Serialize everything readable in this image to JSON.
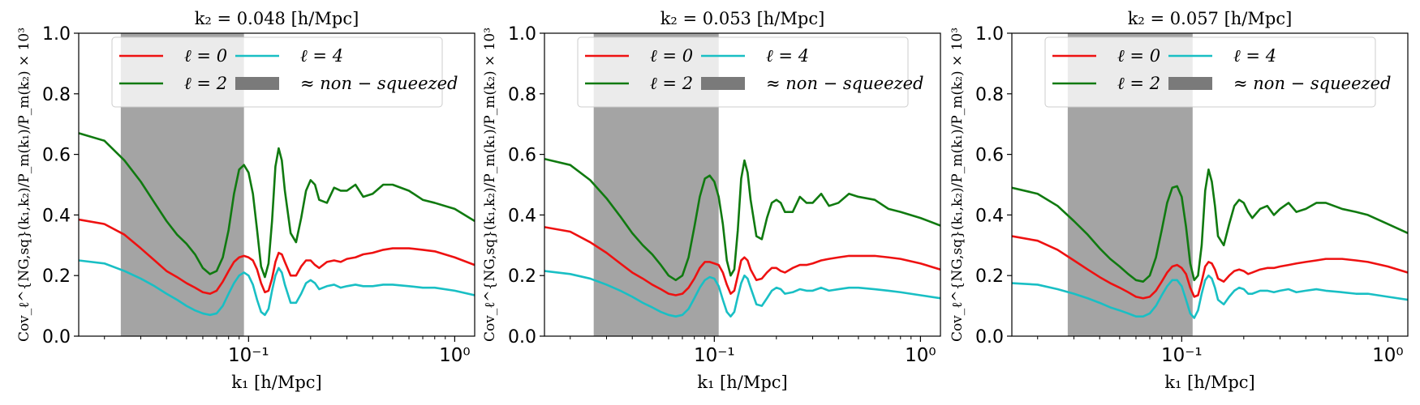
{
  "chart_data": [
    {
      "type": "line",
      "title": "k₂ = 0.048 [h/Mpc]",
      "xlabel": "k₁ [h/Mpc]",
      "ylabel": "Cov_ℓ^{NG,sq}(k₁,k₂)/P_m(k₁)/P_m(k₂) × 10³",
      "xscale": "log",
      "xlim": [
        0.015,
        1.25
      ],
      "ylim": [
        0,
        1.0
      ],
      "xticks": [
        0.1,
        1.0
      ],
      "xtick_labels": [
        "10⁻¹",
        "10⁰"
      ],
      "yticks": [
        0,
        0.2,
        0.4,
        0.6,
        0.8,
        1.0
      ],
      "ytick_labels": [
        "0.0",
        "0.2",
        "0.4",
        "0.6",
        "0.8",
        "1.0"
      ],
      "shaded_band": {
        "x0": 0.024,
        "x1": 0.095,
        "label": "≈ non − squeezed",
        "color": "#9a9a9a"
      },
      "legend_position": "top",
      "series": [
        {
          "name": "ℓ = 0",
          "color": "#ee1111",
          "x": [
            0.015,
            0.02,
            0.025,
            0.03,
            0.035,
            0.04,
            0.045,
            0.05,
            0.055,
            0.06,
            0.065,
            0.07,
            0.075,
            0.08,
            0.085,
            0.09,
            0.095,
            0.1,
            0.105,
            0.11,
            0.115,
            0.12,
            0.125,
            0.13,
            0.135,
            0.14,
            0.145,
            0.15,
            0.16,
            0.17,
            0.18,
            0.19,
            0.2,
            0.21,
            0.22,
            0.24,
            0.26,
            0.28,
            0.3,
            0.33,
            0.36,
            0.4,
            0.45,
            0.5,
            0.6,
            0.7,
            0.8,
            1.0,
            1.25
          ],
          "y": [
            0.385,
            0.37,
            0.335,
            0.29,
            0.25,
            0.215,
            0.195,
            0.175,
            0.16,
            0.145,
            0.14,
            0.15,
            0.18,
            0.215,
            0.245,
            0.26,
            0.265,
            0.26,
            0.25,
            0.22,
            0.175,
            0.145,
            0.15,
            0.19,
            0.245,
            0.275,
            0.27,
            0.245,
            0.2,
            0.2,
            0.23,
            0.25,
            0.25,
            0.235,
            0.225,
            0.245,
            0.25,
            0.245,
            0.255,
            0.26,
            0.27,
            0.275,
            0.285,
            0.29,
            0.29,
            0.285,
            0.28,
            0.26,
            0.235
          ]
        },
        {
          "name": "ℓ = 2",
          "color": "#107a10",
          "x": [
            0.015,
            0.02,
            0.025,
            0.03,
            0.035,
            0.04,
            0.045,
            0.05,
            0.055,
            0.06,
            0.065,
            0.07,
            0.075,
            0.08,
            0.085,
            0.09,
            0.095,
            0.1,
            0.105,
            0.11,
            0.115,
            0.12,
            0.125,
            0.13,
            0.135,
            0.14,
            0.145,
            0.15,
            0.16,
            0.17,
            0.18,
            0.19,
            0.2,
            0.21,
            0.22,
            0.24,
            0.26,
            0.28,
            0.3,
            0.33,
            0.36,
            0.4,
            0.45,
            0.5,
            0.6,
            0.7,
            0.8,
            1.0,
            1.25
          ],
          "y": [
            0.67,
            0.645,
            0.58,
            0.51,
            0.44,
            0.38,
            0.335,
            0.305,
            0.27,
            0.225,
            0.205,
            0.215,
            0.26,
            0.35,
            0.47,
            0.55,
            0.565,
            0.54,
            0.47,
            0.35,
            0.23,
            0.195,
            0.24,
            0.38,
            0.56,
            0.62,
            0.58,
            0.48,
            0.34,
            0.31,
            0.39,
            0.48,
            0.515,
            0.5,
            0.45,
            0.44,
            0.49,
            0.48,
            0.48,
            0.5,
            0.46,
            0.47,
            0.5,
            0.5,
            0.48,
            0.45,
            0.44,
            0.42,
            0.38
          ]
        },
        {
          "name": "ℓ = 4",
          "color": "#19bfc4",
          "x": [
            0.015,
            0.02,
            0.025,
            0.03,
            0.035,
            0.04,
            0.045,
            0.05,
            0.055,
            0.06,
            0.065,
            0.07,
            0.075,
            0.08,
            0.085,
            0.09,
            0.095,
            0.1,
            0.105,
            0.11,
            0.115,
            0.12,
            0.125,
            0.13,
            0.135,
            0.14,
            0.145,
            0.15,
            0.16,
            0.17,
            0.18,
            0.19,
            0.2,
            0.21,
            0.22,
            0.24,
            0.26,
            0.28,
            0.3,
            0.33,
            0.36,
            0.4,
            0.45,
            0.5,
            0.6,
            0.7,
            0.8,
            1.0,
            1.25
          ],
          "y": [
            0.25,
            0.24,
            0.215,
            0.19,
            0.165,
            0.14,
            0.12,
            0.1,
            0.085,
            0.075,
            0.07,
            0.075,
            0.1,
            0.14,
            0.175,
            0.2,
            0.21,
            0.2,
            0.17,
            0.12,
            0.08,
            0.07,
            0.09,
            0.15,
            0.2,
            0.225,
            0.21,
            0.17,
            0.11,
            0.11,
            0.14,
            0.175,
            0.185,
            0.175,
            0.155,
            0.165,
            0.17,
            0.16,
            0.165,
            0.17,
            0.165,
            0.165,
            0.17,
            0.17,
            0.165,
            0.16,
            0.16,
            0.15,
            0.135
          ]
        }
      ]
    },
    {
      "type": "line",
      "title": "k₂ = 0.053 [h/Mpc]",
      "xlabel": "k₁ [h/Mpc]",
      "ylabel": "Cov_ℓ^{NG,sq}(k₁,k₂)/P_m(k₁)/P_m(k₂) × 10³",
      "xscale": "log",
      "xlim": [
        0.015,
        1.25
      ],
      "ylim": [
        0,
        1.0
      ],
      "xticks": [
        0.1,
        1.0
      ],
      "xtick_labels": [
        "10⁻¹",
        "10⁰"
      ],
      "yticks": [
        0,
        0.2,
        0.4,
        0.6,
        0.8,
        1.0
      ],
      "ytick_labels": [
        "0.0",
        "0.2",
        "0.4",
        "0.6",
        "0.8",
        "1.0"
      ],
      "shaded_band": {
        "x0": 0.026,
        "x1": 0.105,
        "label": "≈ non − squeezed",
        "color": "#9a9a9a"
      },
      "legend_position": "top",
      "series": [
        {
          "name": "ℓ = 0",
          "color": "#ee1111",
          "x": [
            0.015,
            0.02,
            0.025,
            0.03,
            0.035,
            0.04,
            0.045,
            0.05,
            0.055,
            0.06,
            0.065,
            0.07,
            0.075,
            0.08,
            0.085,
            0.09,
            0.095,
            0.1,
            0.105,
            0.11,
            0.115,
            0.12,
            0.125,
            0.13,
            0.135,
            0.14,
            0.145,
            0.15,
            0.16,
            0.17,
            0.18,
            0.19,
            0.2,
            0.21,
            0.22,
            0.24,
            0.26,
            0.28,
            0.3,
            0.33,
            0.36,
            0.4,
            0.45,
            0.5,
            0.6,
            0.7,
            0.8,
            1.0,
            1.25
          ],
          "y": [
            0.36,
            0.345,
            0.31,
            0.275,
            0.24,
            0.21,
            0.19,
            0.17,
            0.155,
            0.14,
            0.135,
            0.14,
            0.16,
            0.19,
            0.225,
            0.245,
            0.245,
            0.24,
            0.235,
            0.21,
            0.17,
            0.14,
            0.15,
            0.2,
            0.25,
            0.26,
            0.25,
            0.22,
            0.185,
            0.19,
            0.21,
            0.225,
            0.225,
            0.215,
            0.21,
            0.225,
            0.235,
            0.235,
            0.24,
            0.25,
            0.255,
            0.26,
            0.265,
            0.265,
            0.265,
            0.26,
            0.255,
            0.24,
            0.22
          ]
        },
        {
          "name": "ℓ = 2",
          "color": "#107a10",
          "x": [
            0.015,
            0.02,
            0.025,
            0.03,
            0.035,
            0.04,
            0.045,
            0.05,
            0.055,
            0.06,
            0.065,
            0.07,
            0.075,
            0.08,
            0.085,
            0.09,
            0.095,
            0.1,
            0.105,
            0.11,
            0.115,
            0.12,
            0.125,
            0.13,
            0.135,
            0.14,
            0.145,
            0.15,
            0.16,
            0.17,
            0.18,
            0.19,
            0.2,
            0.21,
            0.22,
            0.24,
            0.26,
            0.28,
            0.3,
            0.33,
            0.36,
            0.4,
            0.45,
            0.5,
            0.6,
            0.7,
            0.8,
            1.0,
            1.25
          ],
          "y": [
            0.585,
            0.565,
            0.515,
            0.455,
            0.395,
            0.34,
            0.3,
            0.27,
            0.235,
            0.2,
            0.185,
            0.2,
            0.26,
            0.36,
            0.46,
            0.52,
            0.53,
            0.51,
            0.46,
            0.37,
            0.25,
            0.2,
            0.22,
            0.35,
            0.52,
            0.58,
            0.54,
            0.45,
            0.33,
            0.32,
            0.39,
            0.44,
            0.45,
            0.44,
            0.41,
            0.41,
            0.46,
            0.44,
            0.44,
            0.47,
            0.43,
            0.44,
            0.47,
            0.46,
            0.45,
            0.42,
            0.41,
            0.39,
            0.365
          ]
        },
        {
          "name": "ℓ = 4",
          "color": "#19bfc4",
          "x": [
            0.015,
            0.02,
            0.025,
            0.03,
            0.035,
            0.04,
            0.045,
            0.05,
            0.055,
            0.06,
            0.065,
            0.07,
            0.075,
            0.08,
            0.085,
            0.09,
            0.095,
            0.1,
            0.105,
            0.11,
            0.115,
            0.12,
            0.125,
            0.13,
            0.135,
            0.14,
            0.145,
            0.15,
            0.16,
            0.17,
            0.18,
            0.19,
            0.2,
            0.21,
            0.22,
            0.24,
            0.26,
            0.28,
            0.3,
            0.33,
            0.36,
            0.4,
            0.45,
            0.5,
            0.6,
            0.7,
            0.8,
            1.0,
            1.25
          ],
          "y": [
            0.215,
            0.205,
            0.19,
            0.17,
            0.15,
            0.13,
            0.11,
            0.095,
            0.08,
            0.07,
            0.065,
            0.07,
            0.09,
            0.125,
            0.16,
            0.185,
            0.195,
            0.19,
            0.165,
            0.12,
            0.08,
            0.065,
            0.08,
            0.13,
            0.175,
            0.2,
            0.19,
            0.16,
            0.105,
            0.1,
            0.125,
            0.15,
            0.16,
            0.155,
            0.14,
            0.145,
            0.155,
            0.15,
            0.15,
            0.16,
            0.15,
            0.155,
            0.16,
            0.16,
            0.155,
            0.15,
            0.145,
            0.135,
            0.125
          ]
        }
      ]
    },
    {
      "type": "line",
      "title": "k₂ = 0.057 [h/Mpc]",
      "xlabel": "k₁ [h/Mpc]",
      "ylabel": "Cov_ℓ^{NG,sq}(k₁,k₂)/P_m(k₁)/P_m(k₂) × 10³",
      "xscale": "log",
      "xlim": [
        0.015,
        1.25
      ],
      "ylim": [
        0,
        1.0
      ],
      "xticks": [
        0.1,
        1.0
      ],
      "xtick_labels": [
        "10⁻¹",
        "10⁰"
      ],
      "yticks": [
        0,
        0.2,
        0.4,
        0.6,
        0.8,
        1.0
      ],
      "ytick_labels": [
        "0.0",
        "0.2",
        "0.4",
        "0.6",
        "0.8",
        "1.0"
      ],
      "shaded_band": {
        "x0": 0.028,
        "x1": 0.113,
        "label": "≈ non − squeezed",
        "color": "#9a9a9a"
      },
      "legend_position": "top",
      "series": [
        {
          "name": "ℓ = 0",
          "color": "#ee1111",
          "x": [
            0.015,
            0.02,
            0.025,
            0.03,
            0.035,
            0.04,
            0.045,
            0.05,
            0.055,
            0.06,
            0.065,
            0.07,
            0.075,
            0.08,
            0.085,
            0.09,
            0.095,
            0.1,
            0.105,
            0.11,
            0.115,
            0.12,
            0.125,
            0.13,
            0.135,
            0.14,
            0.145,
            0.15,
            0.16,
            0.17,
            0.18,
            0.19,
            0.2,
            0.21,
            0.22,
            0.24,
            0.26,
            0.28,
            0.3,
            0.33,
            0.36,
            0.4,
            0.45,
            0.5,
            0.6,
            0.7,
            0.8,
            1.0,
            1.25
          ],
          "y": [
            0.33,
            0.315,
            0.285,
            0.25,
            0.22,
            0.195,
            0.175,
            0.16,
            0.145,
            0.13,
            0.125,
            0.13,
            0.15,
            0.18,
            0.21,
            0.23,
            0.235,
            0.225,
            0.205,
            0.16,
            0.13,
            0.135,
            0.18,
            0.23,
            0.245,
            0.24,
            0.22,
            0.19,
            0.18,
            0.2,
            0.215,
            0.22,
            0.215,
            0.205,
            0.21,
            0.22,
            0.225,
            0.225,
            0.23,
            0.235,
            0.24,
            0.245,
            0.25,
            0.255,
            0.255,
            0.25,
            0.245,
            0.23,
            0.21
          ]
        },
        {
          "name": "ℓ = 2",
          "color": "#107a10",
          "x": [
            0.015,
            0.02,
            0.025,
            0.03,
            0.035,
            0.04,
            0.045,
            0.05,
            0.055,
            0.06,
            0.065,
            0.07,
            0.075,
            0.08,
            0.085,
            0.09,
            0.095,
            0.1,
            0.105,
            0.11,
            0.115,
            0.12,
            0.125,
            0.13,
            0.135,
            0.14,
            0.145,
            0.15,
            0.16,
            0.17,
            0.18,
            0.19,
            0.2,
            0.21,
            0.22,
            0.24,
            0.26,
            0.28,
            0.3,
            0.33,
            0.36,
            0.4,
            0.45,
            0.5,
            0.6,
            0.7,
            0.8,
            1.0,
            1.25
          ],
          "y": [
            0.49,
            0.47,
            0.43,
            0.38,
            0.335,
            0.29,
            0.255,
            0.23,
            0.205,
            0.185,
            0.18,
            0.2,
            0.26,
            0.35,
            0.44,
            0.49,
            0.495,
            0.46,
            0.36,
            0.24,
            0.185,
            0.2,
            0.3,
            0.48,
            0.55,
            0.51,
            0.43,
            0.33,
            0.3,
            0.37,
            0.43,
            0.45,
            0.44,
            0.41,
            0.39,
            0.42,
            0.43,
            0.4,
            0.42,
            0.44,
            0.41,
            0.42,
            0.44,
            0.44,
            0.42,
            0.41,
            0.4,
            0.37,
            0.34
          ]
        },
        {
          "name": "ℓ = 4",
          "color": "#19bfc4",
          "x": [
            0.015,
            0.02,
            0.025,
            0.03,
            0.035,
            0.04,
            0.045,
            0.05,
            0.055,
            0.06,
            0.065,
            0.07,
            0.075,
            0.08,
            0.085,
            0.09,
            0.095,
            0.1,
            0.105,
            0.11,
            0.115,
            0.12,
            0.125,
            0.13,
            0.135,
            0.14,
            0.145,
            0.15,
            0.16,
            0.17,
            0.18,
            0.19,
            0.2,
            0.21,
            0.22,
            0.24,
            0.26,
            0.28,
            0.3,
            0.33,
            0.36,
            0.4,
            0.45,
            0.5,
            0.6,
            0.7,
            0.8,
            1.0,
            1.25
          ],
          "y": [
            0.175,
            0.17,
            0.155,
            0.14,
            0.125,
            0.11,
            0.095,
            0.085,
            0.075,
            0.065,
            0.065,
            0.075,
            0.1,
            0.135,
            0.165,
            0.185,
            0.185,
            0.165,
            0.12,
            0.075,
            0.06,
            0.085,
            0.14,
            0.185,
            0.2,
            0.19,
            0.16,
            0.12,
            0.105,
            0.13,
            0.15,
            0.16,
            0.155,
            0.14,
            0.14,
            0.15,
            0.15,
            0.145,
            0.15,
            0.155,
            0.145,
            0.15,
            0.155,
            0.15,
            0.145,
            0.14,
            0.14,
            0.13,
            0.12
          ]
        }
      ]
    }
  ]
}
